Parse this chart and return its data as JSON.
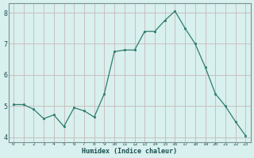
{
  "xlabel": "Humidex (Indice chaleur)",
  "x": [
    0,
    1,
    2,
    3,
    4,
    5,
    6,
    7,
    8,
    9,
    10,
    11,
    12,
    13,
    14,
    15,
    16,
    17,
    18,
    19,
    20,
    21,
    22,
    23
  ],
  "y": [
    5.05,
    5.05,
    4.9,
    4.6,
    4.72,
    4.35,
    4.95,
    4.85,
    4.65,
    5.4,
    6.75,
    6.8,
    6.8,
    7.4,
    7.4,
    7.75,
    8.05,
    7.5,
    7.0,
    6.25,
    5.4,
    5.0,
    4.5,
    4.05
  ],
  "line_color": "#2d7d6e",
  "marker_color": "#2d7d6e",
  "bg_color": "#d8f0ee",
  "grid_color": "#c8b8b8",
  "axis_color": "#7a9090",
  "tick_label_color": "#1a5050",
  "xlabel_color": "#1a5050",
  "ylim": [
    3.85,
    8.3
  ],
  "xlim": [
    -0.5,
    23.5
  ],
  "yticks": [
    4,
    5,
    6,
    7,
    8
  ],
  "xticks": [
    0,
    1,
    2,
    3,
    4,
    5,
    6,
    7,
    8,
    9,
    10,
    11,
    12,
    13,
    14,
    15,
    16,
    17,
    18,
    19,
    20,
    21,
    22,
    23
  ]
}
